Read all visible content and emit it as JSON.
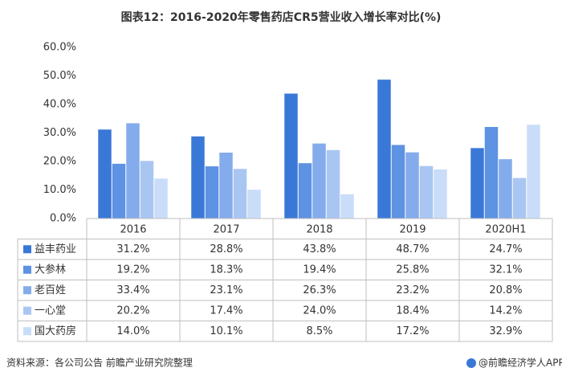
{
  "chart_data": {
    "type": "bar",
    "title": "图表12：2016-2020年零售药店CR5营业收入增长率对比(%)",
    "categories": [
      "2016",
      "2017",
      "2018",
      "2019",
      "2020H1"
    ],
    "series": [
      {
        "name": "益丰药业",
        "color": "#3a78d8",
        "values": [
          31.2,
          28.8,
          43.8,
          48.7,
          24.7
        ],
        "value_labels": [
          "31.2%",
          "28.8%",
          "43.8%",
          "48.7%",
          "24.7%"
        ]
      },
      {
        "name": "大参林",
        "color": "#5e92e2",
        "values": [
          19.2,
          18.3,
          19.4,
          25.8,
          32.1
        ],
        "value_labels": [
          "19.2%",
          "18.3%",
          "19.4%",
          "25.8%",
          "32.1%"
        ]
      },
      {
        "name": "老百姓",
        "color": "#84abec",
        "values": [
          33.4,
          23.1,
          26.3,
          23.2,
          20.8
        ],
        "value_labels": [
          "33.4%",
          "23.1%",
          "26.3%",
          "23.2%",
          "20.8%"
        ]
      },
      {
        "name": "一心堂",
        "color": "#a9c6f3",
        "values": [
          20.2,
          17.4,
          24.0,
          18.4,
          14.2
        ],
        "value_labels": [
          "20.2%",
          "17.4%",
          "24.0%",
          "18.4%",
          "14.2%"
        ]
      },
      {
        "name": "国大药房",
        "color": "#c9ddf9",
        "values": [
          14.0,
          10.1,
          8.5,
          17.2,
          32.9
        ],
        "value_labels": [
          "14.0%",
          "10.1%",
          "8.5%",
          "17.2%",
          "32.9%"
        ]
      }
    ],
    "ylim": [
      0,
      60
    ],
    "yticks": [
      {
        "value": 0,
        "label": "0.0%"
      },
      {
        "value": 10,
        "label": "10.0%"
      },
      {
        "value": 20,
        "label": "20.0%"
      },
      {
        "value": 30,
        "label": "30.0%"
      },
      {
        "value": 40,
        "label": "40.0%"
      },
      {
        "value": 50,
        "label": "50.0%"
      },
      {
        "value": 60,
        "label": "60.0%"
      }
    ],
    "source": "资料来源：各公司公告 前瞻产业研究院整理",
    "credit": "@前瞻经济学人APP"
  }
}
